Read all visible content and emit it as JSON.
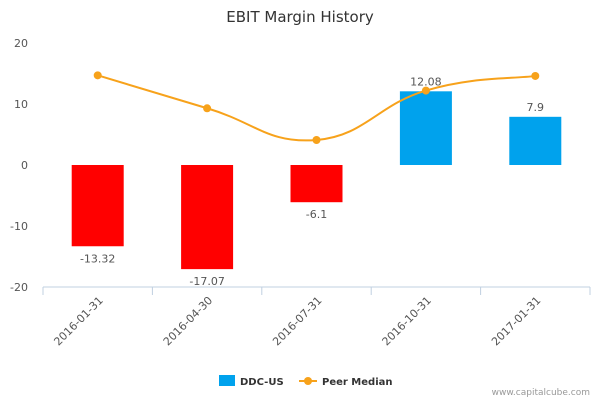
{
  "chart_data": {
    "type": "bar",
    "title": "EBIT Margin History",
    "categories": [
      "2016-01-31",
      "2016-04-30",
      "2016-07-31",
      "2016-10-31",
      "2017-01-31"
    ],
    "series": [
      {
        "name": "DDC-US",
        "type": "bar",
        "values": [
          -13.32,
          -17.07,
          -6.1,
          12.08,
          7.9
        ],
        "labels": [
          "-13.32",
          "-17.07",
          "-6.1",
          "12.08",
          "7.9"
        ],
        "positive_color": "#00a2ed",
        "negative_color": "#ff0000"
      },
      {
        "name": "Peer Median",
        "type": "line",
        "values": [
          14.7,
          9.3,
          4.1,
          12.2,
          14.6
        ],
        "color": "#f7a21b"
      }
    ],
    "ylim": [
      -20,
      20
    ],
    "yticks": [
      20,
      10,
      0,
      -10,
      -20
    ],
    "grid": false,
    "legend": "bottom-center"
  },
  "credit": "www.capitalcube.com"
}
